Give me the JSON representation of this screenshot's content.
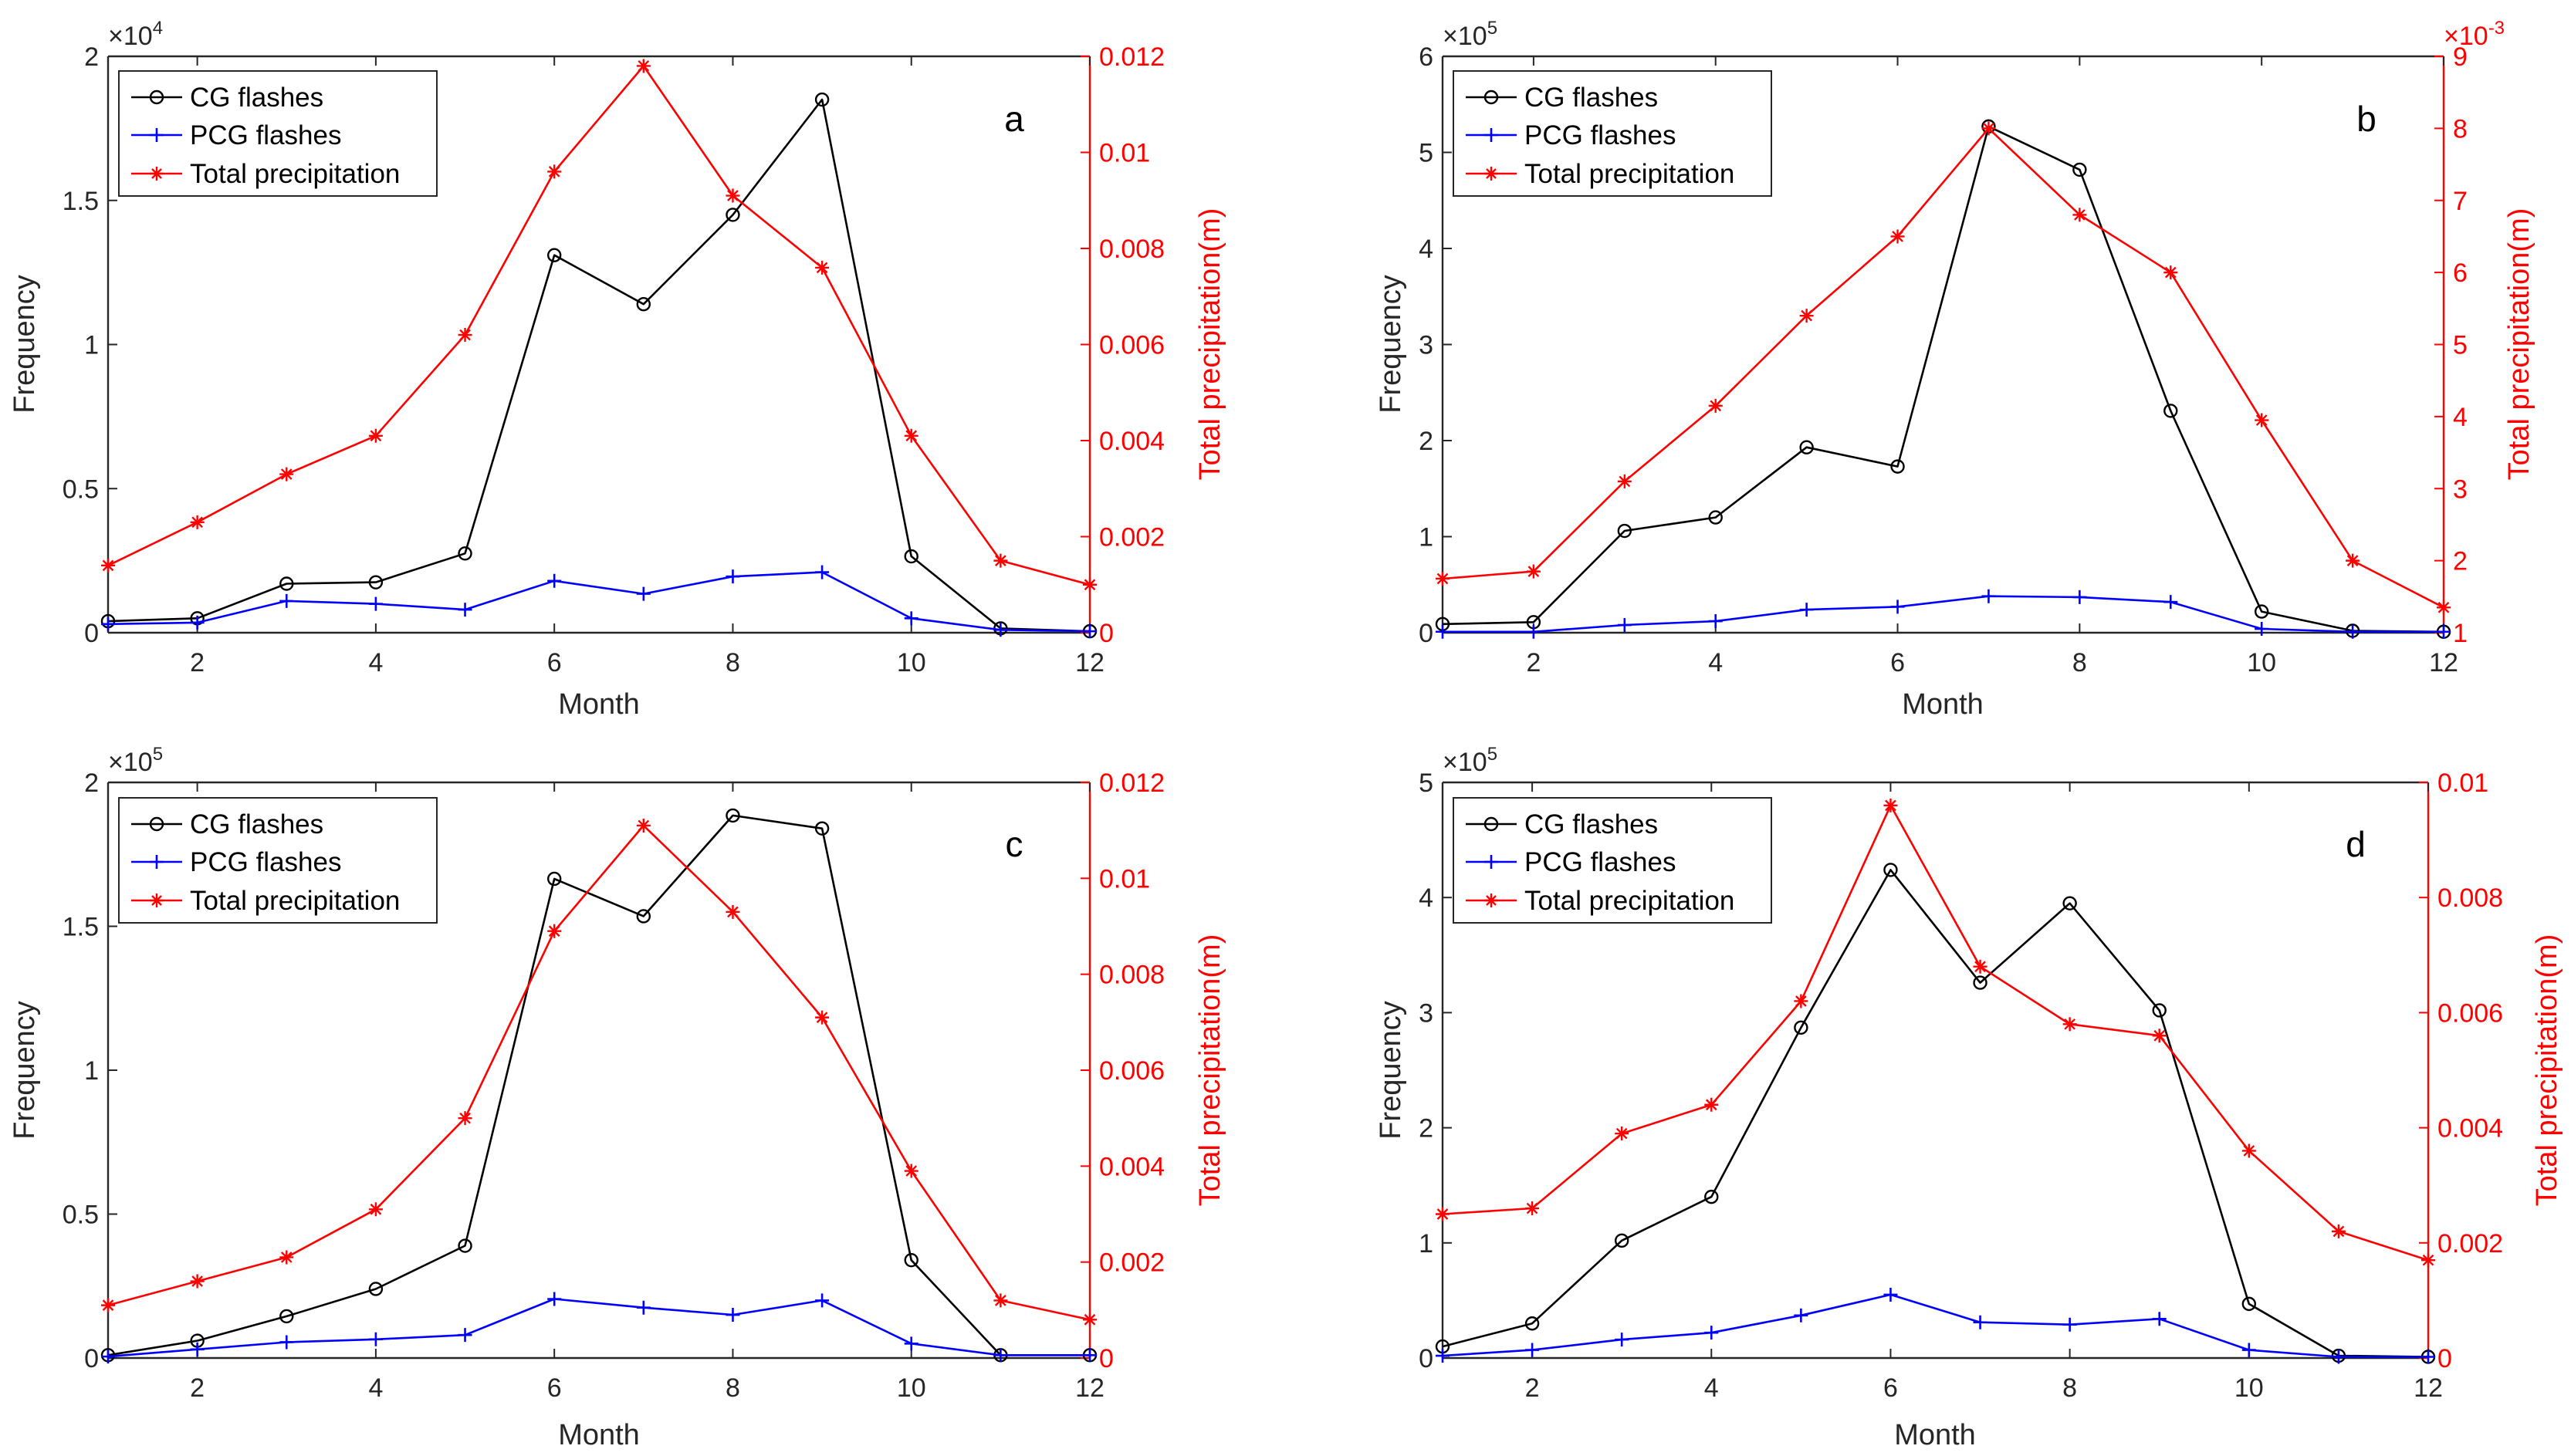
{
  "colors": {
    "cg": "#000000",
    "pcg": "#0000ff",
    "precip": "#ff0000",
    "axis": "#262626"
  },
  "chart_data": [
    {
      "panel": "a",
      "type": "line",
      "xlabel": "Month",
      "ylabel": "Frequency",
      "y2label": "Total precipitation(m)",
      "y_exponent": "×10^4",
      "y_exponent_base": "×10",
      "y_exponent_power": "4",
      "y2_exponent": "",
      "y2_exponent_base": "",
      "y2_exponent_power": "",
      "x": [
        1,
        2,
        3,
        4,
        5,
        6,
        7,
        8,
        9,
        10,
        11,
        12
      ],
      "xlim": [
        1,
        12
      ],
      "xticks": [
        2,
        4,
        6,
        8,
        10,
        12
      ],
      "xtick_labels": [
        "2",
        "4",
        "6",
        "8",
        "10",
        "12"
      ],
      "ylim": [
        0,
        2
      ],
      "yticks": [
        0,
        0.5,
        1,
        1.5,
        2
      ],
      "ytick_labels": [
        "0",
        "0.5",
        "1",
        "1.5",
        "2"
      ],
      "y2lim": [
        0,
        0.012
      ],
      "y2ticks": [
        0,
        0.002,
        0.004,
        0.006,
        0.008,
        0.01,
        0.012
      ],
      "y2tick_labels": [
        "0",
        "0.002",
        "0.004",
        "0.006",
        "0.008",
        "0.01",
        "0.012"
      ],
      "series": [
        {
          "name": "CG flashes",
          "axis": "left",
          "marker": "circle",
          "values": [
            0.04,
            0.05,
            0.17,
            0.175,
            0.275,
            1.31,
            1.14,
            1.45,
            1.85,
            0.265,
            0.015,
            0.005
          ]
        },
        {
          "name": "PCG flashes",
          "axis": "left",
          "marker": "plus",
          "values": [
            0.03,
            0.035,
            0.11,
            0.1,
            0.08,
            0.18,
            0.135,
            0.195,
            0.21,
            0.05,
            0.01,
            0.005
          ]
        },
        {
          "name": "Total precipitation",
          "axis": "right",
          "marker": "star",
          "values": [
            0.0014,
            0.0023,
            0.0033,
            0.0041,
            0.0062,
            0.0096,
            0.0118,
            0.0091,
            0.0076,
            0.0041,
            0.0015,
            0.001
          ]
        }
      ]
    },
    {
      "panel": "b",
      "type": "line",
      "xlabel": "Month",
      "ylabel": "Frequency",
      "y2label": "Total precipitation(m)",
      "y_exponent": "×10^5",
      "y_exponent_base": "×10",
      "y_exponent_power": "5",
      "y2_exponent": "×10^-3",
      "y2_exponent_base": "×10",
      "y2_exponent_power": "-3",
      "x": [
        1,
        2,
        3,
        4,
        5,
        6,
        7,
        8,
        9,
        10,
        11,
        12
      ],
      "xlim": [
        1,
        12
      ],
      "xticks": [
        2,
        4,
        6,
        8,
        10,
        12
      ],
      "xtick_labels": [
        "2",
        "4",
        "6",
        "8",
        "10",
        "12"
      ],
      "ylim": [
        0,
        6
      ],
      "yticks": [
        0,
        1,
        2,
        3,
        4,
        5,
        6
      ],
      "ytick_labels": [
        "0",
        "1",
        "2",
        "3",
        "4",
        "5",
        "6"
      ],
      "y2lim": [
        1,
        9
      ],
      "y2ticks": [
        1,
        2,
        3,
        4,
        5,
        6,
        7,
        8,
        9
      ],
      "y2tick_labels": [
        "1",
        "2",
        "3",
        "4",
        "5",
        "6",
        "7",
        "8",
        "9"
      ],
      "series": [
        {
          "name": "CG flashes",
          "axis": "left",
          "marker": "circle",
          "values": [
            0.09,
            0.11,
            1.06,
            1.2,
            1.93,
            1.73,
            5.27,
            4.82,
            2.31,
            0.22,
            0.02,
            0.01
          ]
        },
        {
          "name": "PCG flashes",
          "axis": "left",
          "marker": "plus",
          "values": [
            0.01,
            0.01,
            0.08,
            0.12,
            0.24,
            0.27,
            0.38,
            0.37,
            0.32,
            0.04,
            0.01,
            0.01
          ]
        },
        {
          "name": "Total precipitation",
          "axis": "right",
          "marker": "star",
          "values": [
            1.75,
            1.85,
            3.1,
            4.15,
            5.4,
            6.5,
            8.0,
            6.8,
            6.0,
            3.95,
            2.0,
            1.35
          ]
        }
      ]
    },
    {
      "panel": "c",
      "type": "line",
      "xlabel": "Month",
      "ylabel": "Frequency",
      "y2label": "Total precipitation(m)",
      "y_exponent": "×10^5",
      "y_exponent_base": "×10",
      "y_exponent_power": "5",
      "y2_exponent": "",
      "y2_exponent_base": "",
      "y2_exponent_power": "",
      "x": [
        1,
        2,
        3,
        4,
        5,
        6,
        7,
        8,
        9,
        10,
        11,
        12
      ],
      "xlim": [
        1,
        12
      ],
      "xticks": [
        2,
        4,
        6,
        8,
        10,
        12
      ],
      "xtick_labels": [
        "2",
        "4",
        "6",
        "8",
        "10",
        "12"
      ],
      "ylim": [
        0,
        2
      ],
      "yticks": [
        0,
        0.5,
        1,
        1.5,
        2
      ],
      "ytick_labels": [
        "0",
        "0.5",
        "1",
        "1.5",
        "2"
      ],
      "y2lim": [
        0,
        0.012
      ],
      "y2ticks": [
        0,
        0.002,
        0.004,
        0.006,
        0.008,
        0.01,
        0.012
      ],
      "y2tick_labels": [
        "0",
        "0.002",
        "0.004",
        "0.006",
        "0.008",
        "0.01",
        "0.012"
      ],
      "series": [
        {
          "name": "CG flashes",
          "axis": "left",
          "marker": "circle",
          "values": [
            0.01,
            0.06,
            0.145,
            0.24,
            0.39,
            1.665,
            1.535,
            1.885,
            1.84,
            0.34,
            0.01,
            0.01
          ]
        },
        {
          "name": "PCG flashes",
          "axis": "left",
          "marker": "plus",
          "values": [
            0.005,
            0.03,
            0.055,
            0.065,
            0.08,
            0.205,
            0.175,
            0.15,
            0.2,
            0.05,
            0.01,
            0.01
          ]
        },
        {
          "name": "Total precipitation",
          "axis": "right",
          "marker": "star",
          "values": [
            0.0011,
            0.0016,
            0.0021,
            0.0031,
            0.005,
            0.0089,
            0.0111,
            0.0093,
            0.0071,
            0.0039,
            0.0012,
            0.0008
          ]
        }
      ]
    },
    {
      "panel": "d",
      "type": "line",
      "xlabel": "Month",
      "ylabel": "Frequency",
      "y2label": "Total precipitation(m)",
      "y_exponent": "×10^5",
      "y_exponent_base": "×10",
      "y_exponent_power": "5",
      "y2_exponent": "",
      "y2_exponent_base": "",
      "y2_exponent_power": "",
      "x": [
        1,
        2,
        3,
        4,
        5,
        6,
        7,
        8,
        9,
        10,
        11,
        12
      ],
      "xlim": [
        1,
        12
      ],
      "xticks": [
        2,
        4,
        6,
        8,
        10,
        12
      ],
      "xtick_labels": [
        "2",
        "4",
        "6",
        "8",
        "10",
        "12"
      ],
      "ylim": [
        0,
        5
      ],
      "yticks": [
        0,
        1,
        2,
        3,
        4,
        5
      ],
      "ytick_labels": [
        "0",
        "1",
        "2",
        "3",
        "4",
        "5"
      ],
      "y2lim": [
        0,
        0.01
      ],
      "y2ticks": [
        0,
        0.002,
        0.004,
        0.006,
        0.008,
        0.01
      ],
      "y2tick_labels": [
        "0",
        "0.002",
        "0.004",
        "0.006",
        "0.008",
        "0.01"
      ],
      "series": [
        {
          "name": "CG flashes",
          "axis": "left",
          "marker": "circle",
          "values": [
            0.1,
            0.3,
            1.02,
            1.4,
            2.87,
            4.24,
            3.26,
            3.95,
            3.02,
            0.47,
            0.02,
            0.01
          ]
        },
        {
          "name": "PCG flashes",
          "axis": "left",
          "marker": "plus",
          "values": [
            0.02,
            0.07,
            0.16,
            0.22,
            0.37,
            0.55,
            0.31,
            0.29,
            0.34,
            0.07,
            0.01,
            0.01
          ]
        },
        {
          "name": "Total precipitation",
          "axis": "right",
          "marker": "star",
          "values": [
            0.0025,
            0.0026,
            0.0039,
            0.0044,
            0.0062,
            0.0096,
            0.0068,
            0.0058,
            0.0056,
            0.0036,
            0.0022,
            0.0017
          ]
        }
      ]
    }
  ]
}
